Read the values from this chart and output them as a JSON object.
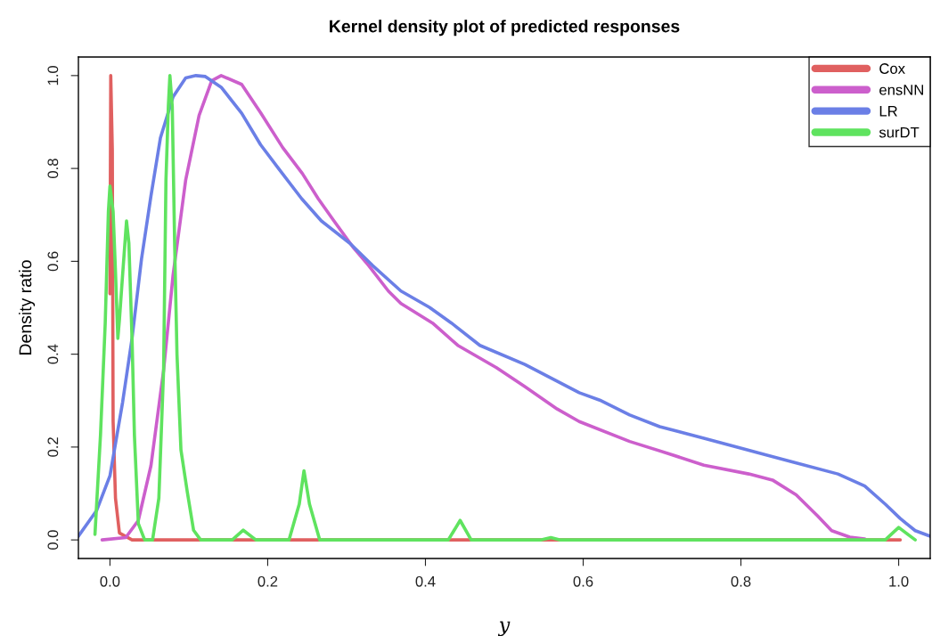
{
  "chart_data": {
    "type": "line",
    "title": "Kernel density plot of predicted responses",
    "xlabel": "y",
    "ylabel": "Density ratio",
    "xlim": [
      -0.04,
      1.04
    ],
    "ylim": [
      -0.04,
      1.04
    ],
    "xticks": [
      {
        "value": 0,
        "label": "0.0"
      },
      0.2,
      0.4,
      0.6,
      0.8,
      {
        "value": 1,
        "label": "1.0"
      }
    ],
    "yticks": [
      {
        "value": 0,
        "label": "0.0"
      },
      0.2,
      0.4,
      0.6,
      0.8,
      {
        "value": 1,
        "label": "1.0"
      }
    ],
    "grid": false,
    "legend": "top right",
    "marker": "none",
    "line_style": "solid",
    "series": [
      {
        "name": "Cox",
        "color": "#e06060",
        "x": [
          0.0,
          0.001,
          0.003,
          0.004,
          0.007,
          0.012,
          0.028,
          1.002
        ],
        "values": [
          0.53,
          1.0,
          0.84,
          0.255,
          0.09,
          0.015,
          0.0,
          0.0
        ]
      },
      {
        "name": "ensNN",
        "color": "#cc5fcc",
        "x": [
          -0.01,
          0.02,
          0.036,
          0.052,
          0.068,
          0.08,
          0.096,
          0.113,
          0.129,
          0.141,
          0.167,
          0.191,
          0.219,
          0.244,
          0.264,
          0.284,
          0.308,
          0.328,
          0.353,
          0.369,
          0.409,
          0.441,
          0.49,
          0.526,
          0.567,
          0.595,
          0.659,
          0.708,
          0.753,
          0.81,
          0.84,
          0.87,
          0.897,
          0.915,
          0.938,
          0.957
        ],
        "values": [
          0.0,
          0.005,
          0.042,
          0.16,
          0.365,
          0.57,
          0.775,
          0.914,
          0.989,
          1.0,
          0.981,
          0.92,
          0.845,
          0.789,
          0.735,
          0.687,
          0.631,
          0.591,
          0.536,
          0.509,
          0.467,
          0.419,
          0.371,
          0.33,
          0.282,
          0.255,
          0.212,
          0.186,
          0.161,
          0.142,
          0.129,
          0.097,
          0.052,
          0.02,
          0.006,
          0.002
        ]
      },
      {
        "name": "LR",
        "color": "#6b7fe6",
        "x": [
          -0.04,
          -0.017,
          0.0,
          0.016,
          0.028,
          0.04,
          0.052,
          0.064,
          0.08,
          0.096,
          0.109,
          0.121,
          0.141,
          0.167,
          0.191,
          0.215,
          0.243,
          0.268,
          0.304,
          0.333,
          0.369,
          0.405,
          0.433,
          0.469,
          0.526,
          0.595,
          0.621,
          0.659,
          0.697,
          0.753,
          0.81,
          0.867,
          0.923,
          0.957,
          0.983,
          1.002,
          1.021,
          1.04
        ],
        "values": [
          0.008,
          0.063,
          0.138,
          0.296,
          0.434,
          0.605,
          0.741,
          0.866,
          0.954,
          0.995,
          1.0,
          0.998,
          0.975,
          0.919,
          0.851,
          0.797,
          0.735,
          0.687,
          0.639,
          0.591,
          0.536,
          0.501,
          0.467,
          0.419,
          0.378,
          0.317,
          0.301,
          0.269,
          0.244,
          0.219,
          0.193,
          0.167,
          0.142,
          0.116,
          0.077,
          0.046,
          0.02,
          0.008
        ]
      },
      {
        "name": "surDT",
        "color": "#5fe35f",
        "x": [
          -0.019,
          -0.012,
          -0.006,
          -0.002,
          0.0,
          0.004,
          0.007,
          0.01,
          0.012,
          0.016,
          0.021,
          0.024,
          0.028,
          0.031,
          0.036,
          0.044,
          0.054,
          0.062,
          0.068,
          0.071,
          0.074,
          0.076,
          0.079,
          0.082,
          0.085,
          0.09,
          0.098,
          0.106,
          0.115,
          0.155,
          0.169,
          0.185,
          0.227,
          0.24,
          0.246,
          0.253,
          0.266,
          0.429,
          0.444,
          0.458,
          0.546,
          0.559,
          0.571,
          0.983,
          1.0,
          1.021
        ],
        "values": [
          0.012,
          0.226,
          0.467,
          0.707,
          0.762,
          0.707,
          0.578,
          0.434,
          0.474,
          0.57,
          0.687,
          0.639,
          0.434,
          0.226,
          0.035,
          0.0,
          0.0,
          0.09,
          0.365,
          0.775,
          0.933,
          1.0,
          0.933,
          0.639,
          0.399,
          0.194,
          0.104,
          0.021,
          0.0,
          0.0,
          0.021,
          0.0,
          0.0,
          0.077,
          0.149,
          0.077,
          0.0,
          0.0,
          0.042,
          0.0,
          0.0,
          0.005,
          0.0,
          0.0,
          0.027,
          0.0
        ]
      }
    ]
  }
}
